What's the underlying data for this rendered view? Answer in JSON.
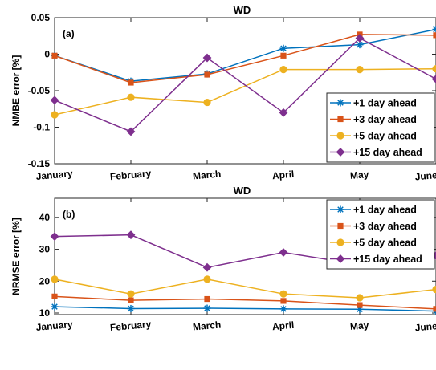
{
  "chart_data": [
    {
      "type": "line",
      "title": "WD",
      "panel_label": "(a)",
      "xlabel": "",
      "ylabel": "NMBE error [%]",
      "categories": [
        "January",
        "February",
        "March",
        "April",
        "May",
        "June"
      ],
      "ylim": [
        -0.15,
        0.05
      ],
      "yticks": [
        0.05,
        0,
        -0.05,
        -0.1,
        -0.15
      ],
      "ytick_labels": [
        "0.05",
        "0",
        "-0.05",
        "-0.1",
        "-0.15"
      ],
      "grid": false,
      "legend_position": "bottom-right",
      "series": [
        {
          "name": "+1 day ahead",
          "marker": "star",
          "color": "#0072BD",
          "values": [
            -0.002,
            -0.037,
            -0.027,
            0.008,
            0.013,
            0.034
          ]
        },
        {
          "name": "+3 day ahead",
          "marker": "square",
          "color": "#D95319",
          "values": [
            -0.002,
            -0.039,
            -0.028,
            -0.002,
            0.027,
            0.026
          ]
        },
        {
          "name": "+5 day ahead",
          "marker": "circle",
          "color": "#EDB120",
          "values": [
            -0.083,
            -0.059,
            -0.066,
            -0.021,
            -0.021,
            -0.02
          ]
        },
        {
          "name": "+15 day ahead",
          "marker": "diamond",
          "color": "#7E2F8E",
          "values": [
            -0.063,
            -0.106,
            -0.005,
            -0.08,
            0.022,
            -0.034
          ]
        }
      ]
    },
    {
      "type": "line",
      "title": "WD",
      "panel_label": "(b)",
      "xlabel": "",
      "ylabel": "NRMSE error [%]",
      "categories": [
        "January",
        "February",
        "March",
        "April",
        "May",
        "June"
      ],
      "ylim": [
        9.5,
        46
      ],
      "yticks": [
        10,
        20,
        30,
        40
      ],
      "ytick_labels": [
        "10",
        "20",
        "30",
        "40"
      ],
      "grid": false,
      "legend_position": "top-right",
      "series": [
        {
          "name": "+1 day ahead",
          "marker": "star",
          "color": "#0072BD",
          "values": [
            12.0,
            11.4,
            11.5,
            11.3,
            11.2,
            10.6
          ]
        },
        {
          "name": "+3 day ahead",
          "marker": "square",
          "color": "#D95319",
          "values": [
            15.2,
            14.0,
            14.4,
            13.8,
            12.5,
            11.3
          ]
        },
        {
          "name": "+5 day ahead",
          "marker": "circle",
          "color": "#EDB120",
          "values": [
            20.6,
            16.0,
            20.6,
            16.0,
            14.8,
            17.4
          ]
        },
        {
          "name": "+15 day ahead",
          "marker": "diamond",
          "color": "#7E2F8E",
          "values": [
            34.0,
            34.5,
            24.3,
            29.0,
            25.2,
            28.0
          ]
        }
      ]
    }
  ]
}
